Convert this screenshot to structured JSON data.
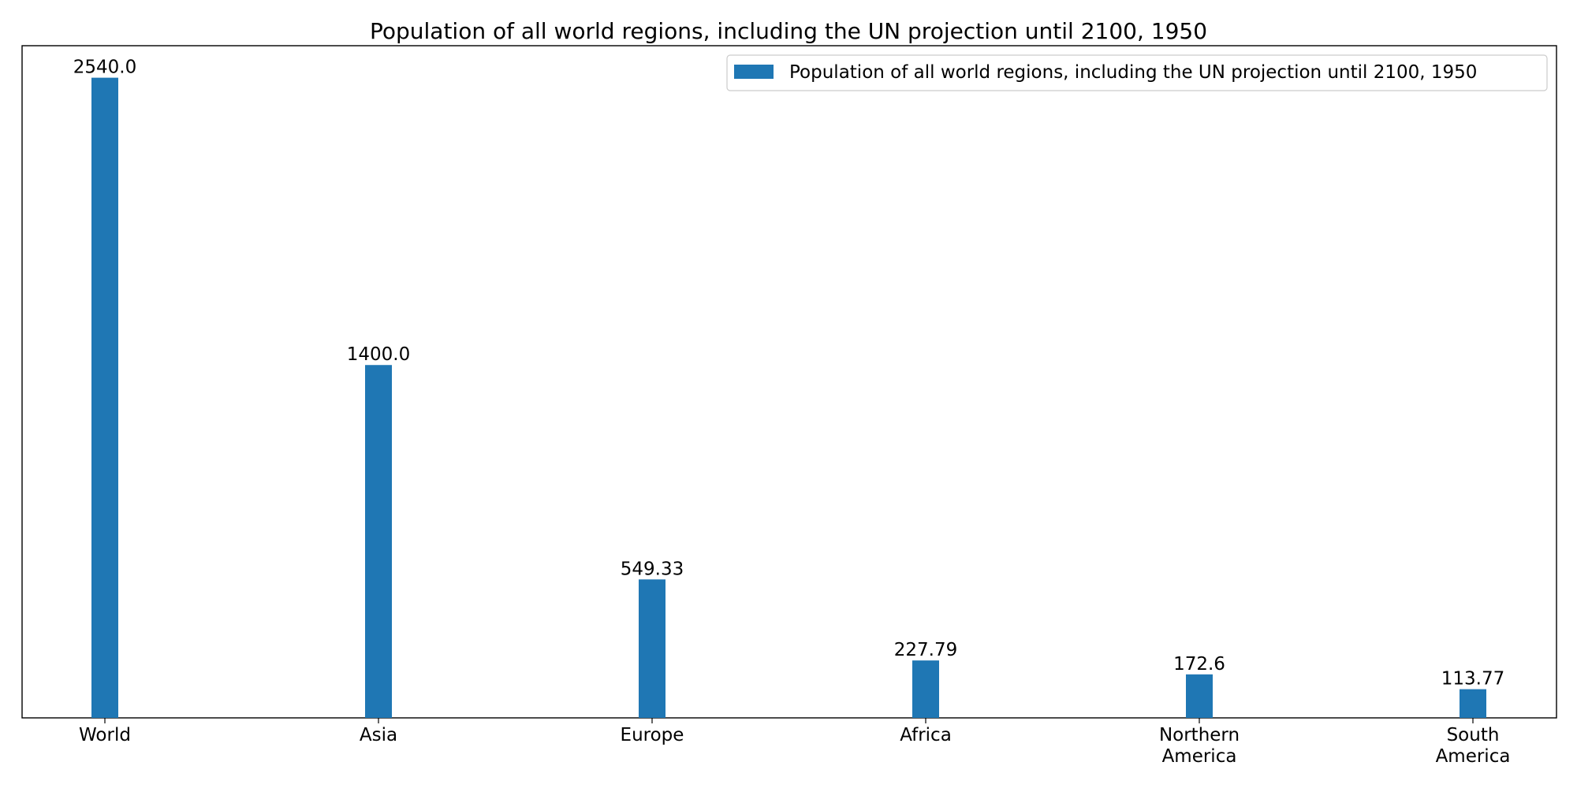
{
  "chart_data": {
    "type": "bar",
    "title": "Population of all world regions, including the UN projection until 2100, 1950",
    "xlabel": "",
    "ylabel": "",
    "categories": [
      "World",
      "Asia",
      "Europe",
      "Africa",
      "Northern America",
      "South America"
    ],
    "category_lines": [
      [
        "World"
      ],
      [
        "Asia"
      ],
      [
        "Europe"
      ],
      [
        "Africa"
      ],
      [
        "Northern",
        "America"
      ],
      [
        "South",
        "America"
      ]
    ],
    "series": [
      {
        "name": "Population of all world regions, including the UN projection until 2100, 1950",
        "values": [
          2540.0,
          1400.0,
          549.33,
          227.79,
          172.6,
          113.77
        ],
        "value_labels": [
          "2540.0",
          "1400.0",
          "549.33",
          "227.79",
          "172.6",
          "113.77"
        ],
        "color": "#1f77b4"
      }
    ],
    "ylim": [
      0,
      2667
    ],
    "grid": false,
    "legend_position": "top-right",
    "y_ticks_visible": false
  }
}
